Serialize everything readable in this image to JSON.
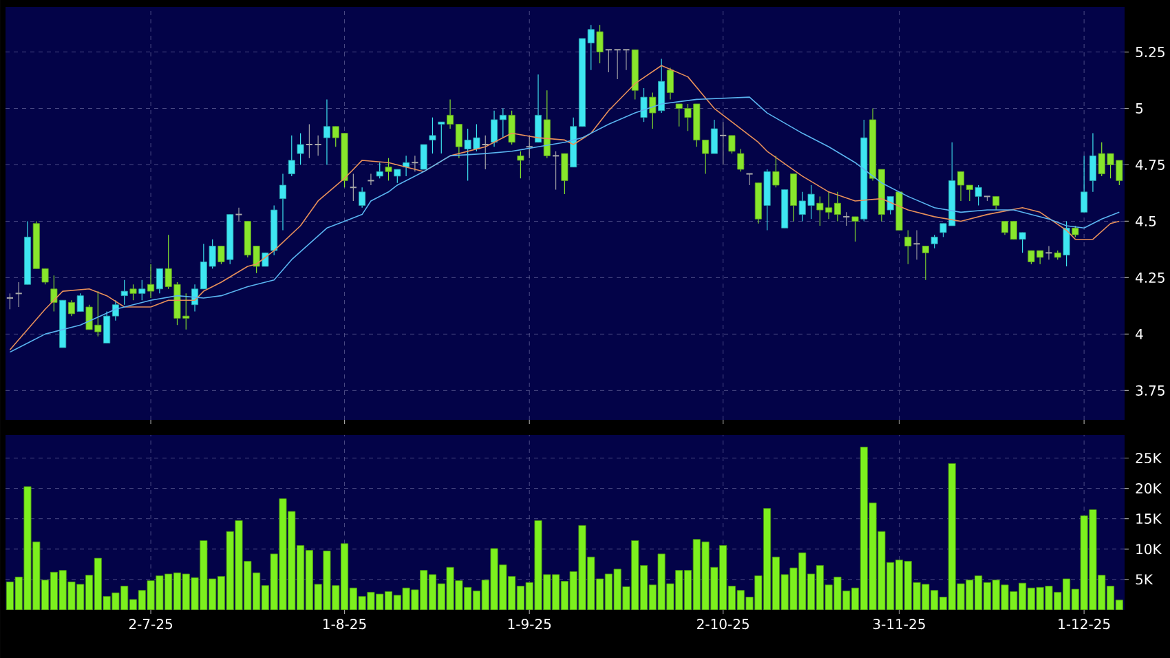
{
  "chart_data": [
    {
      "type": "candlestick",
      "tick_labels": "y",
      "grid": true,
      "ylim": [
        3.62,
        5.45
      ],
      "yticks": [
        3.75,
        4,
        4.25,
        4.5,
        4.75,
        5,
        5.25
      ],
      "categories": [
        null,
        null,
        null,
        null,
        null,
        null,
        null,
        null,
        null,
        null,
        null,
        null,
        null,
        null,
        null,
        null,
        null,
        null,
        null,
        null,
        null,
        null,
        null,
        null,
        null,
        null,
        null,
        null,
        null,
        null,
        null,
        null,
        null,
        null,
        null,
        null,
        null,
        null,
        null,
        null,
        null,
        null,
        null,
        null,
        null,
        null,
        null,
        null,
        null,
        null,
        null,
        null,
        null,
        null,
        null,
        null,
        null,
        null,
        null,
        null,
        null,
        null,
        null,
        null,
        null,
        null,
        null,
        null,
        null,
        null,
        null,
        null,
        null,
        null,
        null,
        null,
        null,
        null,
        null,
        null,
        null,
        null,
        null,
        null,
        null,
        null,
        null,
        null,
        null,
        null,
        null,
        null,
        null,
        null,
        null,
        null,
        null,
        null,
        null,
        null,
        null,
        null,
        null,
        null,
        null,
        null,
        null,
        null,
        null,
        null,
        null,
        null,
        null,
        null,
        null,
        null,
        null,
        null,
        null,
        null,
        null,
        null,
        null,
        null,
        null,
        null,
        null
      ],
      "ohlc": [
        [
          4.16,
          4.18,
          4.11,
          4.16
        ],
        [
          4.18,
          4.23,
          4.12,
          4.18
        ],
        [
          4.22,
          4.5,
          4.22,
          4.43
        ],
        [
          4.49,
          4.5,
          4.29,
          4.29
        ],
        [
          4.29,
          4.29,
          4.22,
          4.23
        ],
        [
          4.2,
          4.26,
          4.1,
          4.14
        ],
        [
          3.94,
          4.15,
          3.94,
          4.15
        ],
        [
          4.14,
          4.15,
          4.08,
          4.09
        ],
        [
          4.1,
          4.18,
          4.1,
          4.17
        ],
        [
          4.12,
          4.13,
          4.02,
          4.02
        ],
        [
          4.04,
          4.19,
          3.99,
          4.01
        ],
        [
          3.96,
          4.1,
          3.96,
          4.08
        ],
        [
          4.08,
          4.15,
          4.06,
          4.13
        ],
        [
          4.17,
          4.24,
          4.13,
          4.19
        ],
        [
          4.2,
          4.22,
          4.15,
          4.18
        ],
        [
          4.18,
          4.24,
          4.15,
          4.2
        ],
        [
          4.22,
          4.31,
          4.16,
          4.19
        ],
        [
          4.2,
          4.29,
          4.18,
          4.29
        ],
        [
          4.29,
          4.44,
          4.2,
          4.21
        ],
        [
          4.22,
          4.23,
          4.04,
          4.07
        ],
        [
          4.08,
          4.18,
          4.02,
          4.07
        ],
        [
          4.13,
          4.22,
          4.1,
          4.2
        ],
        [
          4.2,
          4.4,
          4.2,
          4.32
        ],
        [
          4.3,
          4.42,
          4.29,
          4.39
        ],
        [
          4.39,
          4.39,
          4.31,
          4.32
        ],
        [
          4.33,
          4.53,
          4.31,
          4.53
        ],
        [
          4.53,
          4.56,
          4.5,
          4.53
        ],
        [
          4.5,
          4.5,
          4.34,
          4.35
        ],
        [
          4.39,
          4.39,
          4.27,
          4.3
        ],
        [
          4.3,
          4.36,
          4.3,
          4.36
        ],
        [
          4.37,
          4.57,
          4.35,
          4.55
        ],
        [
          4.6,
          4.71,
          4.46,
          4.66
        ],
        [
          4.71,
          4.88,
          4.7,
          4.77
        ],
        [
          4.8,
          4.89,
          4.75,
          4.84
        ],
        [
          4.84,
          4.93,
          4.78,
          4.84
        ],
        [
          4.84,
          4.88,
          4.79,
          4.84
        ],
        [
          4.87,
          5.04,
          4.75,
          4.92
        ],
        [
          4.92,
          4.92,
          4.83,
          4.87
        ],
        [
          4.89,
          4.89,
          4.65,
          4.68
        ],
        [
          4.65,
          4.71,
          4.59,
          4.65
        ],
        [
          4.57,
          4.65,
          4.56,
          4.63
        ],
        [
          4.68,
          4.71,
          4.66,
          4.68
        ],
        [
          4.7,
          4.76,
          4.69,
          4.72
        ],
        [
          4.74,
          4.78,
          4.68,
          4.72
        ],
        [
          4.7,
          4.73,
          4.67,
          4.73
        ],
        [
          4.74,
          4.79,
          4.7,
          4.76
        ],
        [
          4.76,
          4.79,
          4.72,
          4.76
        ],
        [
          4.73,
          4.84,
          4.73,
          4.84
        ],
        [
          4.86,
          4.96,
          4.8,
          4.88
        ],
        [
          4.93,
          4.94,
          4.8,
          4.94
        ],
        [
          4.97,
          5.04,
          4.91,
          4.93
        ],
        [
          4.93,
          4.93,
          4.78,
          4.83
        ],
        [
          4.82,
          4.91,
          4.68,
          4.86
        ],
        [
          4.82,
          4.93,
          4.81,
          4.87
        ],
        [
          4.84,
          4.88,
          4.73,
          4.84
        ],
        [
          4.85,
          4.99,
          4.83,
          4.95
        ],
        [
          4.95,
          5.0,
          4.87,
          4.97
        ],
        [
          4.97,
          4.99,
          4.84,
          4.85
        ],
        [
          4.79,
          4.81,
          4.69,
          4.77
        ],
        [
          4.83,
          4.88,
          4.78,
          4.83
        ],
        [
          4.85,
          5.15,
          4.85,
          4.97
        ],
        [
          4.95,
          5.08,
          4.78,
          4.79
        ],
        [
          4.79,
          4.81,
          4.64,
          4.79
        ],
        [
          4.8,
          4.8,
          4.62,
          4.68
        ],
        [
          4.74,
          4.96,
          4.74,
          4.92
        ],
        [
          4.92,
          5.31,
          4.92,
          5.31
        ],
        [
          5.29,
          5.37,
          5.17,
          5.35
        ],
        [
          5.34,
          5.37,
          5.2,
          5.25
        ],
        [
          5.26,
          5.26,
          5.16,
          5.26
        ],
        [
          5.26,
          5.26,
          5.13,
          5.26
        ],
        [
          5.26,
          5.26,
          5.17,
          5.26
        ],
        [
          5.26,
          5.26,
          5.04,
          5.08
        ],
        [
          4.96,
          5.09,
          4.94,
          5.05
        ],
        [
          5.05,
          5.07,
          4.91,
          4.98
        ],
        [
          4.99,
          5.22,
          4.98,
          5.12
        ],
        [
          5.17,
          5.18,
          5.04,
          5.07
        ],
        [
          5.02,
          5.02,
          4.92,
          5.0
        ],
        [
          5.0,
          5.02,
          4.9,
          4.96
        ],
        [
          5.02,
          5.02,
          4.83,
          4.86
        ],
        [
          4.86,
          4.86,
          4.71,
          4.8
        ],
        [
          4.8,
          4.95,
          4.8,
          4.91
        ],
        [
          4.88,
          4.94,
          4.75,
          4.88
        ],
        [
          4.88,
          4.88,
          4.8,
          4.81
        ],
        [
          4.8,
          4.82,
          4.72,
          4.73
        ],
        [
          4.71,
          4.71,
          4.66,
          4.71
        ],
        [
          4.67,
          4.67,
          4.49,
          4.51
        ],
        [
          4.57,
          4.73,
          4.46,
          4.72
        ],
        [
          4.72,
          4.79,
          4.65,
          4.66
        ],
        [
          4.47,
          4.64,
          4.47,
          4.64
        ],
        [
          4.71,
          4.71,
          4.5,
          4.57
        ],
        [
          4.53,
          4.63,
          4.5,
          4.59
        ],
        [
          4.57,
          4.66,
          4.51,
          4.62
        ],
        [
          4.58,
          4.61,
          4.48,
          4.55
        ],
        [
          4.56,
          4.63,
          4.51,
          4.54
        ],
        [
          4.58,
          4.63,
          4.5,
          4.53
        ],
        [
          4.52,
          4.54,
          4.48,
          4.52
        ],
        [
          4.52,
          4.52,
          4.41,
          4.5
        ],
        [
          4.51,
          4.95,
          4.5,
          4.87
        ],
        [
          4.95,
          5.0,
          4.68,
          4.69
        ],
        [
          4.73,
          4.73,
          4.5,
          4.53
        ],
        [
          4.55,
          4.61,
          4.53,
          4.61
        ],
        [
          4.63,
          4.63,
          4.46,
          4.46
        ],
        [
          4.43,
          4.46,
          4.31,
          4.39
        ],
        [
          4.4,
          4.46,
          4.33,
          4.4
        ],
        [
          4.39,
          4.39,
          4.24,
          4.36
        ],
        [
          4.4,
          4.44,
          4.38,
          4.43
        ],
        [
          4.45,
          4.49,
          4.43,
          4.49
        ],
        [
          4.48,
          4.85,
          4.48,
          4.68
        ],
        [
          4.72,
          4.72,
          4.59,
          4.66
        ],
        [
          4.66,
          4.66,
          4.59,
          4.64
        ],
        [
          4.61,
          4.66,
          4.57,
          4.65
        ],
        [
          4.61,
          4.61,
          4.59,
          4.61
        ],
        [
          4.61,
          4.61,
          4.55,
          4.57
        ],
        [
          4.5,
          4.5,
          4.44,
          4.45
        ],
        [
          4.5,
          4.5,
          4.42,
          4.42
        ],
        [
          4.42,
          4.45,
          4.36,
          4.45
        ],
        [
          4.37,
          4.37,
          4.31,
          4.32
        ],
        [
          4.37,
          4.37,
          4.31,
          4.34
        ],
        [
          4.36,
          4.39,
          4.33,
          4.36
        ],
        [
          4.36,
          4.37,
          4.33,
          4.34
        ],
        [
          4.35,
          4.5,
          4.3,
          4.47
        ],
        [
          4.47,
          4.48,
          4.43,
          4.44
        ],
        [
          4.54,
          4.79,
          4.54,
          4.63
        ],
        [
          4.68,
          4.89,
          4.63,
          4.79
        ],
        [
          4.8,
          4.85,
          4.7,
          4.71
        ],
        [
          4.8,
          4.8,
          4.69,
          4.75
        ],
        [
          4.77,
          4.77,
          4.66,
          4.68
        ]
      ],
      "colors": [
        "#a8a8a8",
        "#a8a8a8",
        "#3ee6f2",
        "#88e62c",
        "#88e62c",
        "#88e62c",
        "#3ee6f2",
        "#88e62c",
        "#3ee6f2",
        "#88e62c",
        "#88e62c",
        "#3ee6f2",
        "#3ee6f2",
        "#3ee6f2",
        "#88e62c",
        "#3ee6f2",
        "#88e62c",
        "#3ee6f2",
        "#88e62c",
        "#88e62c",
        "#88e62c",
        "#3ee6f2",
        "#3ee6f2",
        "#3ee6f2",
        "#88e62c",
        "#3ee6f2",
        "#a8a8a8",
        "#88e62c",
        "#88e62c",
        "#3ee6f2",
        "#3ee6f2",
        "#3ee6f2",
        "#3ee6f2",
        "#3ee6f2",
        "#a8a8a8",
        "#a8a8a8",
        "#3ee6f2",
        "#88e62c",
        "#88e62c",
        "#a8a8a8",
        "#3ee6f2",
        "#a8a8a8",
        "#3ee6f2",
        "#88e62c",
        "#3ee6f2",
        "#3ee6f2",
        "#a8a8a8",
        "#3ee6f2",
        "#3ee6f2",
        "#3ee6f2",
        "#88e62c",
        "#88e62c",
        "#3ee6f2",
        "#3ee6f2",
        "#a8a8a8",
        "#3ee6f2",
        "#3ee6f2",
        "#88e62c",
        "#88e62c",
        "#a8a8a8",
        "#3ee6f2",
        "#88e62c",
        "#a8a8a8",
        "#88e62c",
        "#3ee6f2",
        "#3ee6f2",
        "#3ee6f2",
        "#88e62c",
        "#a8a8a8",
        "#a8a8a8",
        "#a8a8a8",
        "#88e62c",
        "#3ee6f2",
        "#88e62c",
        "#3ee6f2",
        "#88e62c",
        "#88e62c",
        "#88e62c",
        "#88e62c",
        "#88e62c",
        "#3ee6f2",
        "#a8a8a8",
        "#88e62c",
        "#88e62c",
        "#a8a8a8",
        "#88e62c",
        "#3ee6f2",
        "#88e62c",
        "#3ee6f2",
        "#88e62c",
        "#3ee6f2",
        "#3ee6f2",
        "#88e62c",
        "#88e62c",
        "#88e62c",
        "#a8a8a8",
        "#88e62c",
        "#3ee6f2",
        "#88e62c",
        "#88e62c",
        "#3ee6f2",
        "#88e62c",
        "#88e62c",
        "#a8a8a8",
        "#88e62c",
        "#3ee6f2",
        "#3ee6f2",
        "#3ee6f2",
        "#88e62c",
        "#88e62c",
        "#3ee6f2",
        "#a8a8a8",
        "#88e62c",
        "#88e62c",
        "#88e62c",
        "#3ee6f2",
        "#88e62c",
        "#88e62c",
        "#a8a8a8",
        "#88e62c",
        "#3ee6f2",
        "#88e62c",
        "#3ee6f2",
        "#3ee6f2",
        "#88e62c",
        "#88e62c",
        "#88e62c"
      ],
      "series": [
        {
          "type": "line",
          "color": "#e8905a",
          "values": [
            3.93,
            null,
            null,
            null,
            4.11,
            null,
            4.19,
            null,
            null,
            4.2,
            null,
            4.17,
            null,
            4.12,
            null,
            null,
            4.12,
            null,
            4.15,
            null,
            null,
            4.15,
            4.19,
            null,
            4.23,
            null,
            null,
            4.3,
            4.31,
            null,
            4.37,
            null,
            null,
            4.48,
            null,
            4.59,
            null,
            null,
            4.69,
            null,
            4.77,
            null,
            null,
            4.76,
            4.75,
            null,
            null,
            4.72,
            null,
            null,
            4.79,
            null,
            null,
            null,
            4.83,
            null,
            null,
            4.89,
            null,
            null,
            4.87,
            null,
            null,
            4.86,
            4.84,
            null,
            4.89,
            null,
            4.99,
            null,
            null,
            5.11,
            null,
            null,
            5.19,
            null,
            null,
            5.14,
            null,
            null,
            5.0,
            null,
            4.94,
            null,
            null,
            4.85,
            4.81,
            null,
            null,
            null,
            4.7,
            null,
            null,
            4.63,
            null,
            null,
            4.59,
            null,
            null,
            4.6,
            null,
            null,
            4.55,
            null,
            null,
            4.52,
            null,
            null,
            4.5,
            null,
            null,
            4.53,
            null,
            null,
            null,
            4.56,
            null,
            4.54,
            null,
            null,
            4.46,
            4.42,
            null,
            4.42,
            null,
            4.49,
            4.5
          ]
        },
        {
          "type": "line",
          "color": "#5ab4f0",
          "values": [
            3.92,
            null,
            3.96,
            null,
            4.0,
            null,
            null,
            null,
            4.04,
            null,
            null,
            null,
            4.11,
            null,
            null,
            null,
            4.15,
            null,
            null,
            4.17,
            null,
            null,
            4.16,
            null,
            4.17,
            null,
            null,
            4.21,
            null,
            null,
            4.24,
            null,
            4.33,
            null,
            null,
            null,
            4.47,
            null,
            null,
            null,
            4.53,
            4.59,
            null,
            4.63,
            4.66,
            null,
            null,
            4.72,
            null,
            null,
            4.79,
            null,
            null,
            null,
            4.8,
            null,
            null,
            4.81,
            null,
            null,
            4.83,
            null,
            null,
            4.85,
            null,
            4.87,
            null,
            null,
            4.93,
            null,
            null,
            4.98,
            null,
            null,
            5.02,
            null,
            null,
            null,
            5.04,
            null,
            null,
            null,
            null,
            null,
            5.05,
            null,
            4.98,
            null,
            null,
            null,
            4.89,
            null,
            null,
            4.83,
            null,
            null,
            4.76,
            null,
            null,
            4.67,
            null,
            null,
            4.61,
            null,
            null,
            4.56,
            null,
            null,
            4.54,
            null,
            null,
            4.55,
            null,
            null,
            4.55,
            null,
            null,
            null,
            4.51,
            null,
            4.48,
            null,
            4.47,
            null,
            4.51,
            null,
            4.54
          ]
        }
      ]
    },
    {
      "type": "bar",
      "grid": true,
      "color": "#7cf01e",
      "ylim": [
        0,
        28.8
      ],
      "yticks": [
        {
          "value": 5,
          "label": "5K"
        },
        {
          "value": 10,
          "label": "10K"
        },
        {
          "value": 15,
          "label": "15K"
        },
        {
          "value": 20,
          "label": "20K"
        },
        {
          "value": 25,
          "label": "25K"
        }
      ],
      "categories": [
        null,
        null,
        null,
        null,
        null,
        null,
        null,
        null,
        null,
        null,
        null,
        null,
        null,
        null,
        null,
        null,
        "2-7-25",
        null,
        null,
        null,
        null,
        null,
        null,
        null,
        null,
        null,
        null,
        null,
        null,
        null,
        null,
        null,
        null,
        null,
        null,
        null,
        null,
        null,
        "1-8-25",
        null,
        null,
        null,
        null,
        null,
        null,
        null,
        null,
        null,
        null,
        null,
        null,
        null,
        null,
        null,
        null,
        null,
        null,
        null,
        null,
        "1-9-25",
        null,
        null,
        null,
        null,
        null,
        null,
        null,
        null,
        null,
        null,
        null,
        null,
        null,
        null,
        null,
        null,
        null,
        null,
        null,
        null,
        null,
        "2-10-25",
        null,
        null,
        null,
        null,
        null,
        null,
        null,
        null,
        null,
        null,
        null,
        null,
        null,
        null,
        null,
        null,
        null,
        null,
        null,
        "3-11-25",
        null,
        null,
        null,
        null,
        null,
        null,
        null,
        null,
        null,
        null,
        null,
        null,
        null,
        null,
        null,
        null,
        null,
        null,
        null,
        null,
        "1-12-25",
        null,
        null,
        null,
        null
      ],
      "values": [
        4.6,
        5.4,
        20.3,
        11.2,
        4.9,
        6.2,
        6.5,
        4.6,
        4.2,
        5.7,
        8.5,
        2.2,
        2.8,
        3.9,
        1.7,
        3.2,
        4.8,
        5.6,
        5.9,
        6.1,
        5.9,
        5.3,
        11.4,
        5.1,
        5.5,
        12.9,
        14.7,
        8.0,
        6.1,
        4.0,
        9.2,
        18.3,
        16.2,
        10.6,
        9.8,
        4.2,
        9.7,
        4.0,
        10.9,
        3.6,
        2.2,
        2.9,
        2.6,
        3.0,
        2.4,
        3.6,
        3.3,
        6.5,
        5.8,
        4.3,
        7.0,
        4.8,
        3.7,
        3.1,
        4.9,
        10.1,
        7.4,
        5.5,
        3.9,
        4.5,
        14.7,
        5.8,
        5.8,
        4.7,
        6.3,
        13.9,
        8.7,
        5.1,
        5.9,
        6.7,
        3.8,
        11.4,
        7.3,
        4.1,
        9.2,
        4.3,
        6.5,
        6.5,
        11.6,
        11.2,
        7.0,
        10.6,
        3.9,
        3.2,
        2.1,
        5.6,
        16.7,
        8.7,
        5.8,
        6.9,
        9.4,
        5.9,
        7.3,
        4.1,
        5.4,
        3.1,
        3.6,
        26.8,
        17.6,
        12.9,
        7.8,
        8.2,
        8.0,
        4.5,
        4.2,
        3.2,
        2.1,
        24.1,
        4.3,
        4.9,
        5.6,
        4.5,
        4.9,
        4.1,
        3.0,
        4.4,
        3.6,
        3.7,
        3.9,
        2.9,
        5.1,
        3.4,
        15.5,
        16.5,
        5.7,
        3.9,
        1.6
      ]
    }
  ]
}
